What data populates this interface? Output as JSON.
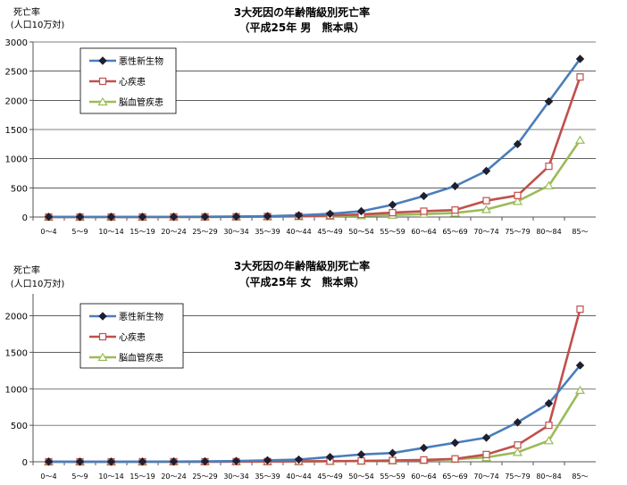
{
  "chart_data": [
    {
      "type": "line",
      "title": "3大死因の年齢階級別死亡率",
      "subtitle": "（平成25年 男　熊本県）",
      "ylabel": "死亡率",
      "ylabel_sub": "(人口10万対)",
      "ylim": [
        0,
        3000
      ],
      "yticks": [
        0,
        500,
        1000,
        1500,
        2000,
        2500,
        3000
      ],
      "grid": true,
      "legend": "top-left",
      "categories": [
        "0～4",
        "5～9",
        "10～14",
        "15～19",
        "20～24",
        "25～29",
        "30～34",
        "35～39",
        "40～44",
        "45～49",
        "50～54",
        "55～59",
        "60～64",
        "65～69",
        "70～74",
        "75～79",
        "80～84",
        "85～"
      ],
      "series": [
        {
          "name": "悪性新生物",
          "color": "#4a7ebb",
          "marker": "diamond",
          "values": [
            3,
            2,
            2,
            3,
            4,
            5,
            8,
            15,
            30,
            55,
            100,
            210,
            360,
            530,
            790,
            1250,
            1980,
            2710
          ]
        },
        {
          "name": "心疾患",
          "color": "#c0504d",
          "marker": "square",
          "values": [
            1,
            0,
            1,
            1,
            2,
            3,
            5,
            10,
            15,
            25,
            45,
            75,
            100,
            120,
            280,
            370,
            870,
            2400
          ]
        },
        {
          "name": "脳血管疾患",
          "color": "#9bbb59",
          "marker": "triangle",
          "values": [
            0,
            0,
            0,
            0,
            1,
            1,
            3,
            5,
            10,
            15,
            25,
            35,
            50,
            70,
            130,
            270,
            540,
            1320
          ]
        }
      ]
    },
    {
      "type": "line",
      "title": "3大死因の年齢階級別死亡率",
      "subtitle": "（平成25年 女　熊本県）",
      "ylabel": "死亡率",
      "ylabel_sub": "(人口10万対)",
      "ylim": [
        0,
        2300
      ],
      "yticks": [
        0,
        500,
        1000,
        1500,
        2000
      ],
      "grid": true,
      "legend": "top-left",
      "categories": [
        "0～4",
        "5～9",
        "10～14",
        "15～19",
        "20～24",
        "25～29",
        "30～34",
        "35～39",
        "40～44",
        "45～49",
        "50～54",
        "55～59",
        "60～64",
        "65～69",
        "70～74",
        "75～79",
        "80～84",
        "85～"
      ],
      "series": [
        {
          "name": "悪性新生物",
          "color": "#4a7ebb",
          "marker": "diamond",
          "values": [
            2,
            1,
            1,
            2,
            3,
            5,
            10,
            20,
            30,
            65,
            100,
            120,
            190,
            260,
            330,
            540,
            800,
            1320
          ]
        },
        {
          "name": "心疾患",
          "color": "#c0504d",
          "marker": "square",
          "values": [
            0,
            0,
            0,
            0,
            1,
            1,
            2,
            3,
            5,
            8,
            12,
            18,
            25,
            40,
            100,
            230,
            500,
            2090
          ]
        },
        {
          "name": "脳血管疾患",
          "color": "#9bbb59",
          "marker": "triangle",
          "values": [
            0,
            0,
            0,
            0,
            1,
            1,
            2,
            3,
            5,
            7,
            10,
            15,
            20,
            35,
            60,
            130,
            290,
            980
          ]
        }
      ]
    }
  ]
}
